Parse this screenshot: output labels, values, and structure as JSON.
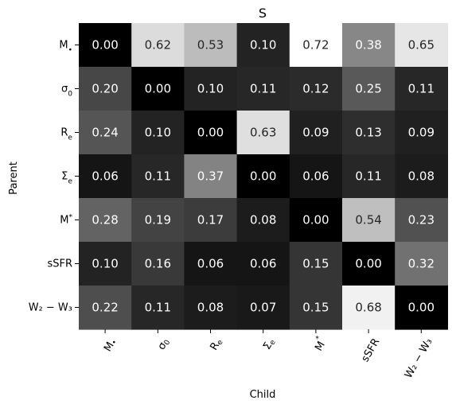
{
  "chart_data": {
    "type": "heatmap",
    "title": "S",
    "xlabel": "Child",
    "ylabel": "Parent",
    "rows": [
      {
        "label": "M",
        "sub": "•",
        "sup": ""
      },
      {
        "label": "σ",
        "sub": "0",
        "sup": ""
      },
      {
        "label": "R",
        "sub": "e",
        "sup": ""
      },
      {
        "label": "Σ",
        "sub": "e",
        "sup": ""
      },
      {
        "label": "M",
        "sub": "",
        "sup": "*"
      },
      {
        "label": "sSFR",
        "sub": "",
        "sup": ""
      },
      {
        "label": "W₂ − W₃",
        "sub": "",
        "sup": ""
      }
    ],
    "columns": [
      {
        "label": "M",
        "sub": "•",
        "sup": ""
      },
      {
        "label": "σ",
        "sub": "0",
        "sup": ""
      },
      {
        "label": "R",
        "sub": "e",
        "sup": ""
      },
      {
        "label": "Σ",
        "sub": "e",
        "sup": ""
      },
      {
        "label": "M",
        "sub": "",
        "sup": "*"
      },
      {
        "label": "sSFR",
        "sub": "",
        "sup": ""
      },
      {
        "label": "W₂ − W₃",
        "sub": "",
        "sup": ""
      }
    ],
    "values": [
      [
        0.0,
        0.62,
        0.53,
        0.1,
        0.72,
        0.38,
        0.65
      ],
      [
        0.2,
        0.0,
        0.1,
        0.11,
        0.12,
        0.25,
        0.11
      ],
      [
        0.24,
        0.1,
        0.0,
        0.63,
        0.09,
        0.13,
        0.09
      ],
      [
        0.06,
        0.11,
        0.37,
        0.0,
        0.06,
        0.11,
        0.08
      ],
      [
        0.28,
        0.19,
        0.17,
        0.08,
        0.0,
        0.54,
        0.23
      ],
      [
        0.1,
        0.16,
        0.06,
        0.06,
        0.15,
        0.0,
        0.32
      ],
      [
        0.22,
        0.11,
        0.08,
        0.07,
        0.15,
        0.68,
        0.0
      ]
    ],
    "value_format": "2 decimals",
    "colormap": "gray",
    "vmin": 0.0,
    "vmax": 0.72,
    "annotation_text_color_dark_cells": "#ffffff",
    "annotation_text_color_light_cells": "#262626",
    "grid": false,
    "colorbar": false
  }
}
